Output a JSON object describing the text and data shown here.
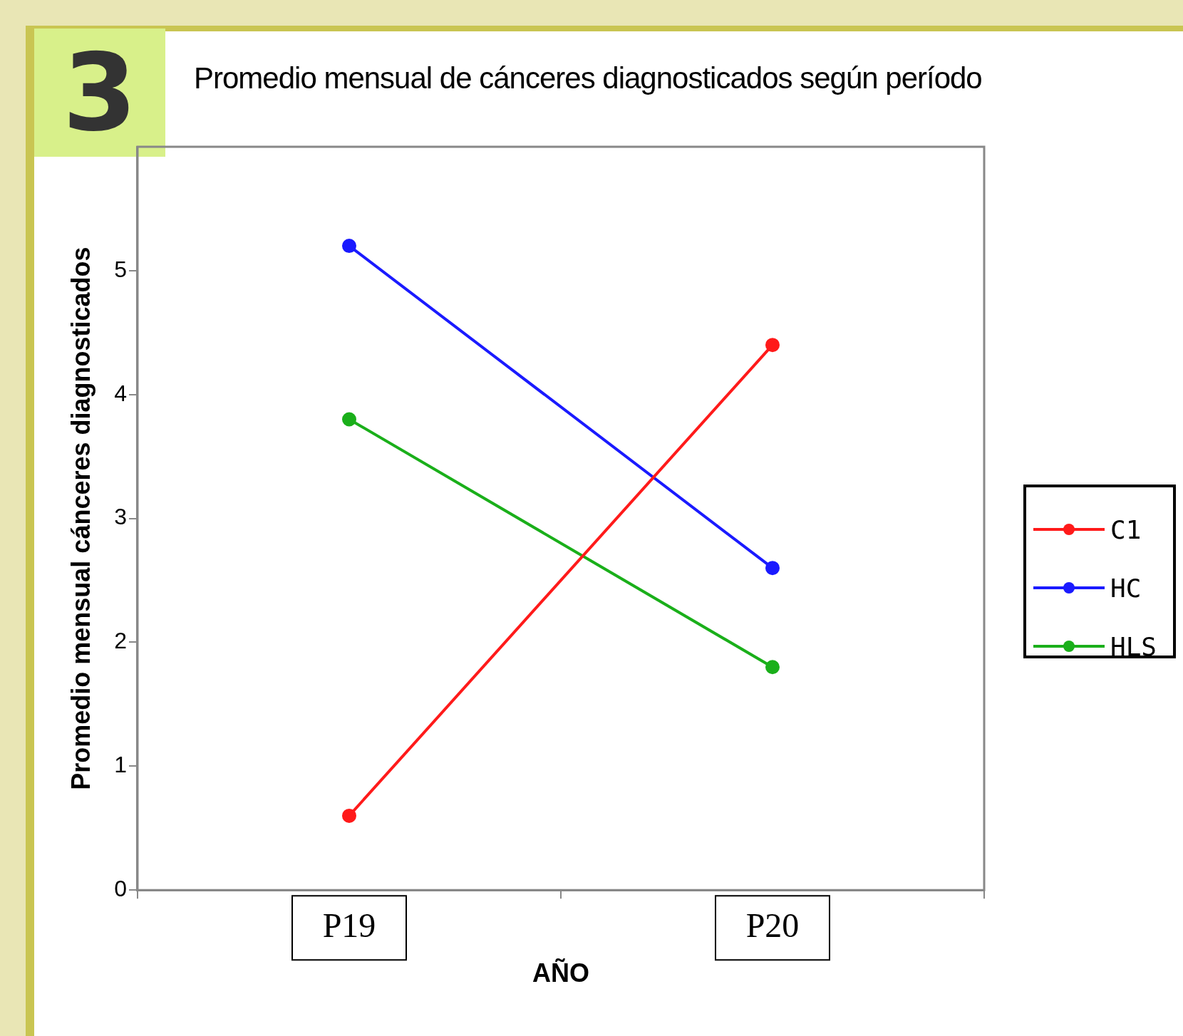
{
  "chart_data": {
    "type": "line",
    "title": "Promedio mensual de cánceres diagnosticados según período",
    "xlabel": "AÑO",
    "ylabel": "Promedio mensual cánceres diagnosticados",
    "annotations": [
      "3"
    ],
    "categories": [
      "P19",
      "P20"
    ],
    "series": [
      {
        "name": "C1",
        "color": "#ff1a1a",
        "values": [
          0.6,
          4.4
        ]
      },
      {
        "name": "HC",
        "color": "#1a1aff",
        "values": [
          5.2,
          2.6
        ]
      },
      {
        "name": "HLS",
        "color": "#1aaf1a",
        "values": [
          3.8,
          1.8
        ]
      }
    ],
    "ylim": [
      0,
      6
    ],
    "yticks": [
      0,
      1,
      2,
      3,
      4,
      5
    ],
    "grid": false,
    "legend": "right",
    "marker": "circle",
    "line_style": "solid"
  }
}
